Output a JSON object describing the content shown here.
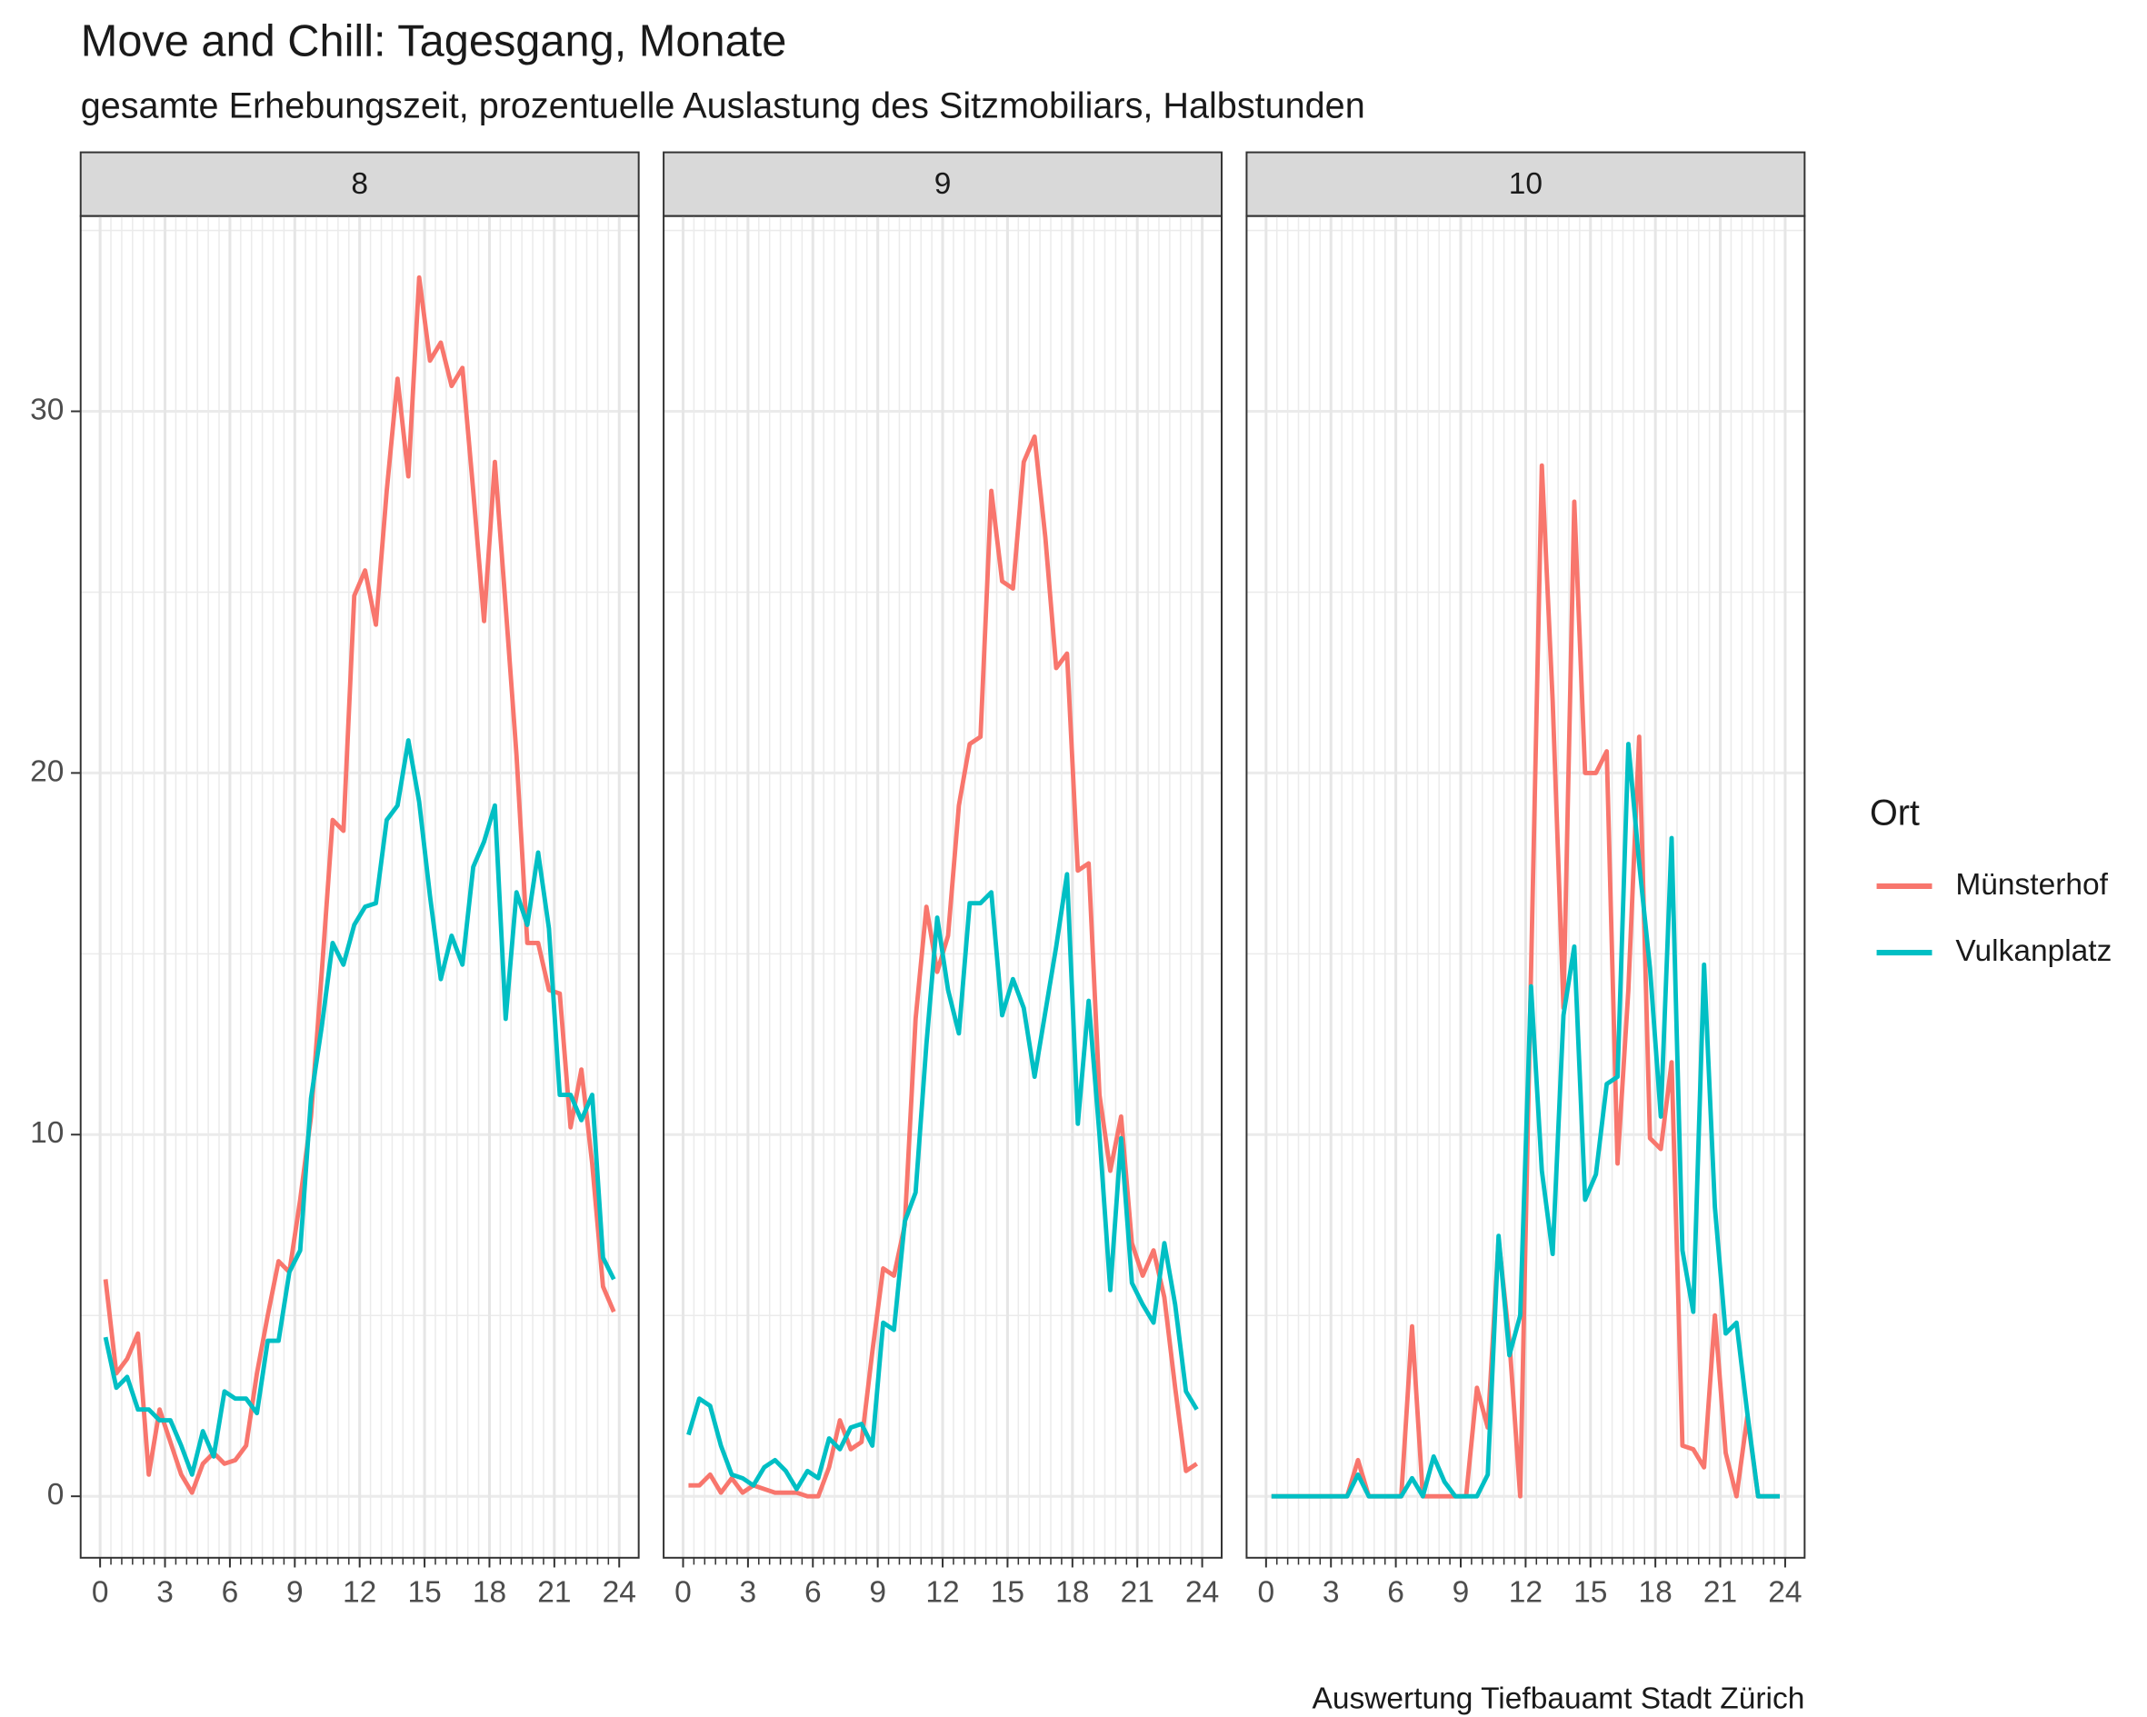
{
  "title": "Move and Chill: Tagesgang, Monate",
  "subtitle": "gesamte Erhebungszeit, prozentuelle Auslastung des Sitzmobiliars, Halbstunden",
  "caption": "Auswertung Tiefbauamt Stadt Zürich",
  "legend": {
    "title": "Ort",
    "position": "right"
  },
  "chart_data": [
    {
      "type": "line",
      "panel": "8",
      "x": [
        0.25,
        0.75,
        1.25,
        1.75,
        2.25,
        2.75,
        3.25,
        3.75,
        4.25,
        4.75,
        5.25,
        5.75,
        6.25,
        6.75,
        7.25,
        7.75,
        8.25,
        8.75,
        9.25,
        9.75,
        10.25,
        10.75,
        11.25,
        11.75,
        12.25,
        12.75,
        13.25,
        13.75,
        14.25,
        14.75,
        15.25,
        15.75,
        16.25,
        16.75,
        17.25,
        17.75,
        18.25,
        18.75,
        19.25,
        19.75,
        20.25,
        20.75,
        21.25,
        21.75,
        22.25,
        22.75,
        23.25,
        23.75
      ],
      "series": [
        {
          "name": "Münsterhof",
          "color": "#f8766d",
          "values": [
            6.0,
            3.4,
            3.8,
            4.5,
            0.6,
            2.4,
            1.5,
            0.6,
            0.1,
            0.9,
            1.2,
            0.9,
            1.0,
            1.4,
            3.4,
            5.0,
            6.5,
            6.2,
            8.2,
            10.5,
            14.5,
            18.7,
            18.4,
            24.9,
            25.6,
            24.1,
            27.8,
            30.9,
            28.2,
            33.7,
            31.4,
            31.9,
            30.7,
            31.2,
            27.8,
            24.2,
            28.6,
            24.6,
            20.5,
            15.3,
            15.3,
            14.0,
            13.9,
            10.2,
            11.8,
            9.2,
            5.8,
            5.1
          ]
        },
        {
          "name": "Vulkanplatz",
          "color": "#00bfc4",
          "values": [
            4.4,
            3.0,
            3.3,
            2.4,
            2.4,
            2.1,
            2.1,
            1.4,
            0.6,
            1.8,
            1.1,
            2.9,
            2.7,
            2.7,
            2.3,
            4.3,
            4.3,
            6.2,
            6.8,
            11.0,
            13.0,
            15.3,
            14.7,
            15.8,
            16.3,
            16.4,
            18.7,
            19.1,
            20.9,
            19.2,
            16.6,
            14.3,
            15.5,
            14.7,
            17.4,
            18.1,
            19.1,
            13.2,
            16.7,
            15.8,
            17.8,
            15.7,
            11.1,
            11.1,
            10.4,
            11.1,
            6.6,
            6.0
          ]
        }
      ],
      "xlim": [
        -0.9,
        24.9
      ],
      "xticks": [
        0,
        3,
        6,
        9,
        12,
        15,
        18,
        21,
        24
      ],
      "x_minor_ticks": [
        0,
        0.5,
        1,
        1.5,
        2,
        2.5,
        3,
        3.5,
        4,
        4.5,
        5,
        5.5,
        6,
        6.5,
        7,
        7.5,
        8,
        8.5,
        9,
        9.5,
        10,
        10.5,
        11,
        11.5,
        12,
        12.5,
        13,
        13.5,
        14,
        14.5,
        15,
        15.5,
        16,
        16.5,
        17,
        17.5,
        18,
        18.5,
        19,
        19.5,
        20,
        20.5,
        21,
        21.5,
        22,
        22.5,
        23,
        23.5,
        24
      ],
      "ylim": [
        -1.7,
        35.4
      ],
      "yticks": [
        0,
        10,
        20,
        30
      ],
      "y_minor_ticks": [
        5,
        15,
        25,
        35
      ],
      "grid": true
    },
    {
      "type": "line",
      "panel": "9",
      "x": [
        0.25,
        0.75,
        1.25,
        1.75,
        2.25,
        2.75,
        3.25,
        3.75,
        4.25,
        4.75,
        5.25,
        5.75,
        6.25,
        6.75,
        7.25,
        7.75,
        8.25,
        8.75,
        9.25,
        9.75,
        10.25,
        10.75,
        11.25,
        11.75,
        12.25,
        12.75,
        13.25,
        13.75,
        14.25,
        14.75,
        15.25,
        15.75,
        16.25,
        16.75,
        17.25,
        17.75,
        18.25,
        18.75,
        19.25,
        19.75,
        20.25,
        20.75,
        21.25,
        21.75,
        22.25,
        22.75,
        23.25,
        23.75
      ],
      "series": [
        {
          "name": "Münsterhof",
          "color": "#f8766d",
          "values": [
            0.3,
            0.3,
            0.6,
            0.1,
            0.5,
            0.1,
            0.3,
            0.2,
            0.1,
            0.1,
            0.1,
            0.0,
            0.0,
            0.8,
            2.1,
            1.3,
            1.5,
            4.0,
            6.3,
            6.1,
            7.5,
            13.2,
            16.3,
            14.5,
            15.5,
            19.1,
            20.8,
            21.0,
            27.8,
            25.3,
            25.1,
            28.6,
            29.3,
            26.5,
            22.9,
            23.3,
            17.3,
            17.5,
            11.1,
            9.0,
            10.5,
            7.0,
            6.1,
            6.8,
            5.5,
            3.0,
            0.7,
            0.9
          ]
        },
        {
          "name": "Vulkanplatz",
          "color": "#00bfc4",
          "values": [
            1.7,
            2.7,
            2.5,
            1.4,
            0.6,
            0.5,
            0.3,
            0.8,
            1.0,
            0.7,
            0.2,
            0.7,
            0.5,
            1.6,
            1.3,
            1.9,
            2.0,
            1.4,
            4.8,
            4.6,
            7.6,
            8.4,
            12.5,
            16.0,
            14.0,
            12.8,
            16.4,
            16.4,
            16.7,
            13.3,
            14.3,
            13.5,
            11.6,
            13.4,
            15.2,
            17.2,
            10.3,
            13.7,
            10.0,
            5.7,
            9.9,
            5.9,
            5.3,
            4.8,
            7.0,
            5.3,
            2.9,
            2.4
          ]
        }
      ],
      "xlim": [
        -0.9,
        24.9
      ],
      "xticks": [
        0,
        3,
        6,
        9,
        12,
        15,
        18,
        21,
        24
      ],
      "x_minor_ticks": [
        0,
        0.5,
        1,
        1.5,
        2,
        2.5,
        3,
        3.5,
        4,
        4.5,
        5,
        5.5,
        6,
        6.5,
        7,
        7.5,
        8,
        8.5,
        9,
        9.5,
        10,
        10.5,
        11,
        11.5,
        12,
        12.5,
        13,
        13.5,
        14,
        14.5,
        15,
        15.5,
        16,
        16.5,
        17,
        17.5,
        18,
        18.5,
        19,
        19.5,
        20,
        20.5,
        21,
        21.5,
        22,
        22.5,
        23,
        23.5,
        24
      ],
      "ylim": [
        -1.7,
        35.4
      ],
      "yticks": [
        0,
        10,
        20,
        30
      ],
      "y_minor_ticks": [
        5,
        15,
        25,
        35
      ],
      "grid": true
    },
    {
      "type": "line",
      "panel": "10",
      "x": [
        0.25,
        0.75,
        1.25,
        1.75,
        2.25,
        2.75,
        3.25,
        3.75,
        4.25,
        4.75,
        5.25,
        5.75,
        6.25,
        6.75,
        7.25,
        7.75,
        8.25,
        8.75,
        9.25,
        9.75,
        10.25,
        10.75,
        11.25,
        11.75,
        12.25,
        12.75,
        13.25,
        13.75,
        14.25,
        14.75,
        15.25,
        15.75,
        16.25,
        16.75,
        17.25,
        17.75,
        18.25,
        18.75,
        19.25,
        19.75,
        20.25,
        20.75,
        21.25,
        21.75,
        22.25,
        22.75,
        23.25,
        23.75
      ],
      "series": [
        {
          "name": "Münsterhof",
          "color": "#f8766d",
          "values": [
            0,
            0,
            0,
            0,
            0,
            0,
            0,
            0,
            1.0,
            0,
            0,
            0,
            0,
            4.7,
            0,
            0,
            0,
            0,
            0,
            3.0,
            1.9,
            7.1,
            4.3,
            0.0,
            14.5,
            28.5,
            22.0,
            13.5,
            27.5,
            20.0,
            20.0,
            20.6,
            9.2,
            14.0,
            21.0,
            9.9,
            9.6,
            12.0,
            1.4,
            1.3,
            0.8,
            5.0,
            1.2,
            0.0,
            2.2,
            0,
            0,
            0
          ]
        },
        {
          "name": "Vulkanplatz",
          "color": "#00bfc4",
          "values": [
            0,
            0,
            0,
            0,
            0,
            0,
            0,
            0,
            0.6,
            0,
            0,
            0,
            0,
            0.5,
            0,
            1.1,
            0.4,
            0,
            0,
            0,
            0.6,
            7.2,
            3.9,
            5.0,
            14.1,
            9.0,
            6.7,
            13.3,
            15.2,
            8.2,
            8.9,
            11.4,
            11.6,
            20.8,
            17.5,
            14.6,
            10.5,
            18.2,
            6.8,
            5.1,
            14.7,
            8.0,
            4.5,
            4.8,
            2.3,
            0,
            0,
            0
          ]
        }
      ],
      "xlim": [
        -0.9,
        24.9
      ],
      "xticks": [
        0,
        3,
        6,
        9,
        12,
        15,
        18,
        21,
        24
      ],
      "x_minor_ticks": [
        0,
        0.5,
        1,
        1.5,
        2,
        2.5,
        3,
        3.5,
        4,
        4.5,
        5,
        5.5,
        6,
        6.5,
        7,
        7.5,
        8,
        8.5,
        9,
        9.5,
        10,
        10.5,
        11,
        11.5,
        12,
        12.5,
        13,
        13.5,
        14,
        14.5,
        15,
        15.5,
        16,
        16.5,
        17,
        17.5,
        18,
        18.5,
        19,
        19.5,
        20,
        20.5,
        21,
        21.5,
        22,
        22.5,
        23,
        23.5,
        24
      ],
      "ylim": [
        -1.7,
        35.4
      ],
      "yticks": [
        0,
        10,
        20,
        30
      ],
      "y_minor_ticks": [
        5,
        15,
        25,
        35
      ],
      "grid": true
    }
  ]
}
